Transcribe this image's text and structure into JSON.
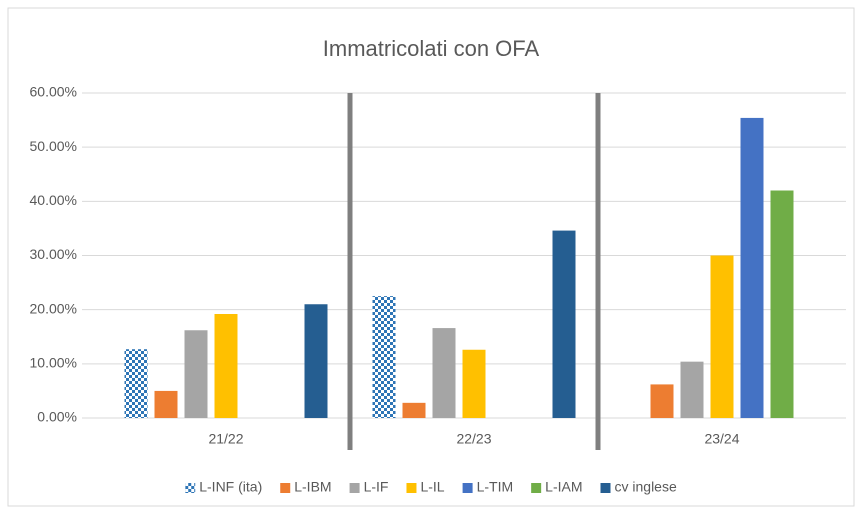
{
  "chart_data": {
    "type": "bar",
    "title": "Immatricolati con OFA",
    "categories": [
      "21/22",
      "22/23",
      "23/24"
    ],
    "series": [
      {
        "name": "L-INF (ita)",
        "color": "#2e75b6",
        "pattern": true,
        "values": [
          12.7,
          22.5,
          null
        ]
      },
      {
        "name": "L-IBM",
        "color": "#ed7d31",
        "values": [
          5.0,
          2.8,
          6.2
        ]
      },
      {
        "name": "L-IF",
        "color": "#a5a5a5",
        "values": [
          16.2,
          16.6,
          10.4
        ]
      },
      {
        "name": "L-IL",
        "color": "#ffc000",
        "values": [
          19.2,
          12.6,
          30.0
        ]
      },
      {
        "name": "L-TIM",
        "color": "#4472c4",
        "values": [
          null,
          null,
          55.4
        ]
      },
      {
        "name": "L-IAM",
        "color": "#70ad47",
        "values": [
          null,
          null,
          42.0
        ]
      },
      {
        "name": "cv inglese",
        "color": "#255e91",
        "values": [
          21.0,
          34.6,
          null
        ]
      }
    ],
    "ylim": [
      0,
      60
    ],
    "yticks": [
      {
        "value": 0,
        "label": "0.00%"
      },
      {
        "value": 10,
        "label": "10.00%"
      },
      {
        "value": 20,
        "label": "20.00%"
      },
      {
        "value": 30,
        "label": "30.00%"
      },
      {
        "value": 40,
        "label": "40.00%"
      },
      {
        "value": 50,
        "label": "50.00%"
      },
      {
        "value": 60,
        "label": "60.00%"
      }
    ],
    "grid": true,
    "legend": "bottom"
  }
}
